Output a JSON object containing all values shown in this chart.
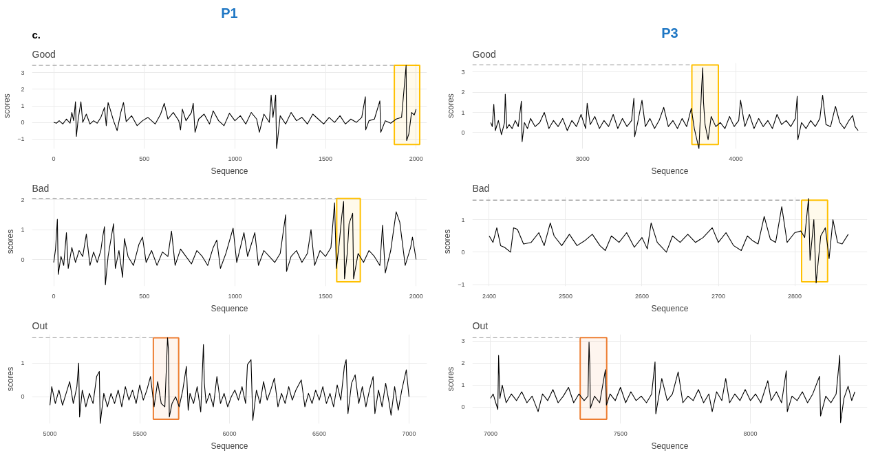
{
  "chart_data": [
    {
      "type": "line",
      "title": "Good",
      "annotations": [
        "c.",
        "P1"
      ],
      "xlabel": "Sequence",
      "ylabel": "scores",
      "grid": true,
      "xlim": [
        -120,
        2060
      ],
      "xticks": [
        0,
        500,
        1000,
        1500,
        2000
      ],
      "ylim": [
        -1.6,
        3.6
      ],
      "yticks": [
        -1,
        0,
        1,
        2,
        3
      ],
      "series": [
        {
          "color": "#000000",
          "x": [
            0,
            15,
            30,
            50,
            70,
            90,
            100,
            110,
            120,
            125,
            135,
            150,
            160,
            180,
            200,
            220,
            240,
            260,
            280,
            290,
            300,
            310,
            330,
            350,
            370,
            385,
            400,
            430,
            460,
            490,
            520,
            560,
            590,
            610,
            630,
            660,
            690,
            700,
            710,
            730,
            760,
            770,
            780,
            800,
            830,
            860,
            880,
            910,
            940,
            970,
            1000,
            1030,
            1060,
            1090,
            1120,
            1135,
            1160,
            1190,
            1200,
            1210,
            1225,
            1230,
            1250,
            1280,
            1310,
            1340,
            1370,
            1400,
            1430,
            1460,
            1490,
            1520,
            1550,
            1580,
            1610,
            1640,
            1670,
            1700,
            1720,
            1722,
            1740,
            1770,
            1800,
            1805,
            1830,
            1860,
            1890,
            1920,
            1945,
            1948,
            1960,
            1975,
            1990,
            2000
          ],
          "values": [
            0,
            -0.05,
            0.1,
            -0.1,
            0.2,
            -0.05,
            0.6,
            0.1,
            1.25,
            -0.85,
            0.2,
            1.25,
            0,
            0.5,
            -0.1,
            0.1,
            -0.05,
            0.3,
            0.9,
            -0.2,
            1.2,
            0.85,
            0.1,
            -0.5,
            0.6,
            1.2,
            0.05,
            0.4,
            -0.2,
            0.1,
            0.3,
            -0.1,
            0.5,
            1.15,
            0.2,
            0.6,
            0.1,
            -0.45,
            0.8,
            0.1,
            0.6,
            1.15,
            -0.6,
            0.2,
            0.5,
            -0.1,
            0.7,
            0.1,
            -0.2,
            0.55,
            0.1,
            0.4,
            -0.1,
            0.6,
            0.2,
            -0.6,
            0.5,
            0,
            1.65,
            0.3,
            1.65,
            -1.6,
            0.4,
            -0.1,
            0.6,
            0.1,
            0.3,
            -0.1,
            0.5,
            0.2,
            -0.1,
            0.3,
            0,
            0.4,
            -0.1,
            0.2,
            0,
            0.3,
            1.55,
            -0.45,
            0.1,
            0.2,
            1.3,
            -0.6,
            0.1,
            -0.05,
            0.2,
            0.3,
            3.45,
            -1.1,
            -0.7,
            0.6,
            0.45,
            0.8
          ]
        }
      ],
      "ref_lines": [
        {
          "axis": "y",
          "value": 3.45,
          "color": "#a6a6a6",
          "line_style": "dashed"
        }
      ],
      "bands": [
        {
          "axis": "x",
          "from": 1880,
          "to": 2020,
          "color": "#ffc000"
        }
      ]
    },
    {
      "type": "line",
      "title": "Good",
      "annotations": [
        "P3"
      ],
      "xlabel": "Sequence",
      "ylabel": "scores",
      "grid": true,
      "xlim": [
        2280,
        4860
      ],
      "xticks": [
        3000,
        4000
      ],
      "ylim": [
        -0.8,
        3.45
      ],
      "yticks": [
        0,
        1,
        2,
        3
      ],
      "series": [
        {
          "color": "#000000",
          "x": [
            2400,
            2410,
            2420,
            2430,
            2450,
            2470,
            2490,
            2495,
            2505,
            2520,
            2540,
            2560,
            2580,
            2600,
            2605,
            2620,
            2640,
            2660,
            2690,
            2720,
            2750,
            2780,
            2810,
            2840,
            2870,
            2900,
            2930,
            2960,
            2990,
            3020,
            3030,
            3050,
            3080,
            3110,
            3140,
            3170,
            3200,
            3230,
            3260,
            3290,
            3320,
            3335,
            3340,
            3360,
            3388,
            3410,
            3440,
            3470,
            3500,
            3530,
            3560,
            3590,
            3620,
            3650,
            3680,
            3710,
            3730,
            3760,
            3778,
            3785,
            3790,
            3800,
            3820,
            3840,
            3870,
            3900,
            3930,
            3960,
            3990,
            4020,
            4032,
            4060,
            4090,
            4120,
            4150,
            4180,
            4210,
            4240,
            4270,
            4300,
            4330,
            4360,
            4390,
            4402,
            4406,
            4430,
            4460,
            4490,
            4520,
            4550,
            4568,
            4590,
            4620,
            4652,
            4680,
            4710,
            4740,
            4764,
            4780,
            4800
          ],
          "values": [
            0.5,
            0.3,
            1.4,
            0.1,
            0.6,
            -0.1,
            0.5,
            1.9,
            0.2,
            0.4,
            0.2,
            0.6,
            0.3,
            1.55,
            -0.45,
            0.5,
            0.2,
            0.7,
            0.3,
            0.5,
            1.0,
            0.2,
            0.6,
            0.3,
            0.7,
            0.1,
            0.6,
            0.3,
            0.9,
            0.2,
            1.45,
            0.4,
            0.8,
            0.2,
            0.6,
            0.3,
            0.9,
            0.2,
            0.7,
            0.3,
            0.6,
            1.7,
            -0.2,
            0.5,
            1.6,
            0.3,
            0.7,
            0.2,
            0.6,
            1.25,
            0.3,
            0.6,
            0.2,
            0.7,
            0.3,
            1.2,
            0.2,
            -0.8,
            2.3,
            3.2,
            1.5,
            0.4,
            -0.35,
            0.8,
            0.3,
            0.5,
            0.2,
            0.8,
            0.3,
            0.6,
            1.6,
            0.3,
            0.9,
            0.2,
            0.7,
            0.3,
            0.6,
            0.2,
            0.9,
            0.4,
            0.6,
            0.3,
            0.7,
            1.8,
            -0.35,
            0.5,
            0.2,
            0.6,
            0.3,
            0.7,
            1.85,
            0.4,
            0.3,
            1.3,
            0.5,
            0.2,
            0.6,
            0.85,
            0.3,
            0.1
          ]
        }
      ],
      "ref_lines": [
        {
          "axis": "y",
          "value": 3.35,
          "color": "#a6a6a6",
          "line_style": "dashed"
        }
      ],
      "bands": [
        {
          "axis": "x",
          "from": 3714,
          "to": 3887,
          "color": "#ffc000"
        }
      ]
    },
    {
      "type": "line",
      "title": "Bad",
      "xlabel": "Sequence",
      "ylabel": "scores",
      "grid": true,
      "xlim": [
        -120,
        2060
      ],
      "xticks": [
        0,
        500,
        1000,
        1500,
        2000
      ],
      "ylim": [
        -0.9,
        2.1
      ],
      "yticks": [
        0,
        1,
        2
      ],
      "series": [
        {
          "color": "#000000",
          "x": [
            0,
            10,
            20,
            25,
            40,
            55,
            70,
            80,
            100,
            120,
            140,
            160,
            180,
            200,
            220,
            240,
            260,
            270,
            280,
            285,
            300,
            330,
            340,
            360,
            380,
            390,
            410,
            440,
            470,
            490,
            510,
            540,
            570,
            600,
            630,
            650,
            670,
            700,
            730,
            760,
            790,
            820,
            850,
            880,
            900,
            920,
            950,
            990,
            1010,
            1050,
            1070,
            1110,
            1130,
            1160,
            1190,
            1220,
            1250,
            1280,
            1285,
            1310,
            1340,
            1370,
            1400,
            1420,
            1440,
            1470,
            1500,
            1530,
            1550,
            1560,
            1575,
            1590,
            1600,
            1605,
            1620,
            1630,
            1650,
            1655,
            1680,
            1710,
            1740,
            1770,
            1800,
            1815,
            1830,
            1860,
            1890,
            1910,
            1940,
            1970,
            1980,
            2000
          ],
          "values": [
            -0.1,
            0.35,
            1.35,
            -0.5,
            0.1,
            -0.2,
            0.9,
            -0.3,
            0.4,
            -0.1,
            0.3,
            0.1,
            0.85,
            -0.2,
            0.25,
            -0.1,
            0.3,
            0.75,
            1.1,
            -0.85,
            0.1,
            1.2,
            -0.3,
            0.3,
            -0.6,
            0.7,
            0.1,
            -0.2,
            0.5,
            0.75,
            -0.1,
            0.3,
            -0.2,
            0.25,
            0.1,
            0.95,
            -0.2,
            0.35,
            0.1,
            -0.15,
            0.3,
            0.1,
            -0.2,
            0.4,
            0.65,
            -0.3,
            0.2,
            1.05,
            -0.1,
            0.9,
            0.1,
            0.9,
            -0.2,
            0.3,
            0.1,
            -0.1,
            0.2,
            1.5,
            -0.4,
            0.1,
            0.3,
            -0.1,
            0.2,
            1.0,
            -0.2,
            0.3,
            0.1,
            0.4,
            1.9,
            -0.3,
            0.5,
            1.45,
            1.95,
            -0.65,
            0.2,
            1.2,
            1.55,
            -0.65,
            0.2,
            -0.1,
            0.3,
            0.1,
            -0.2,
            1.15,
            -0.45,
            0.3,
            1.6,
            1.25,
            -0.2,
            0.4,
            0.75,
            0
          ]
        }
      ],
      "ref_lines": [
        {
          "axis": "y",
          "value": 2.05,
          "color": "#a6a6a6",
          "line_style": "dashed"
        }
      ],
      "bands": [
        {
          "axis": "x",
          "from": 1562,
          "to": 1692,
          "color": "#ffc000"
        }
      ]
    },
    {
      "type": "line",
      "title": "Bad",
      "xlabel": "Sequence",
      "ylabel": "scores",
      "grid": true,
      "xlim": [
        2378,
        2895
      ],
      "xticks": [
        2400,
        2500,
        2600,
        2700,
        2800
      ],
      "ylim": [
        -1.05,
        1.7
      ],
      "yticks": [
        -1,
        0,
        1
      ],
      "series": [
        {
          "color": "#000000",
          "x": [
            2400,
            2405,
            2410,
            2415,
            2420,
            2428,
            2432,
            2437,
            2445,
            2455,
            2465,
            2472,
            2480,
            2485,
            2495,
            2505,
            2515,
            2525,
            2535,
            2545,
            2552,
            2560,
            2570,
            2580,
            2590,
            2600,
            2607,
            2612,
            2620,
            2632,
            2640,
            2650,
            2660,
            2670,
            2680,
            2692,
            2700,
            2710,
            2720,
            2730,
            2738,
            2745,
            2752,
            2760,
            2768,
            2775,
            2783,
            2790,
            2800,
            2808,
            2813,
            2818,
            2820,
            2825,
            2828,
            2834,
            2840,
            2845,
            2850,
            2856,
            2862,
            2870
          ],
          "values": [
            0.5,
            0.3,
            0.75,
            0.2,
            0.15,
            0.0,
            0.75,
            0.7,
            0.25,
            0.3,
            0.6,
            0.2,
            0.9,
            0.5,
            0.2,
            0.55,
            0.2,
            0.35,
            0.55,
            0.2,
            0.05,
            0.5,
            0.3,
            0.6,
            0.15,
            0.45,
            0.1,
            0.9,
            0.3,
            0.0,
            0.5,
            0.3,
            0.55,
            0.3,
            0.45,
            0.75,
            0.3,
            0.6,
            0.2,
            0.05,
            0.5,
            0.35,
            0.25,
            1.1,
            0.4,
            0.3,
            1.4,
            0.3,
            0.6,
            0.65,
            0.45,
            1.65,
            -0.25,
            1.0,
            -0.95,
            0.5,
            0.75,
            -0.2,
            1.0,
            0.3,
            0.25,
            0.55
          ]
        }
      ],
      "ref_lines": [
        {
          "axis": "y",
          "value": 1.6,
          "color": "#a6a6a6",
          "line_style": "dashed"
        }
      ],
      "bands": [
        {
          "axis": "x",
          "from": 2809,
          "to": 2843,
          "color": "#ffc000"
        }
      ]
    },
    {
      "type": "line",
      "title": "Out",
      "xlabel": "Sequence",
      "ylabel": "scores",
      "grid": true,
      "xlim": [
        4900,
        7100
      ],
      "xticks": [
        5000,
        5500,
        6000,
        6500,
        7000
      ],
      "ylim": [
        -0.8,
        1.85
      ],
      "yticks": [
        0,
        1
      ],
      "series": [
        {
          "color": "#000000",
          "x": [
            5000,
            5010,
            5030,
            5050,
            5070,
            5090,
            5110,
            5130,
            5150,
            5160,
            5165,
            5180,
            5200,
            5220,
            5240,
            5260,
            5275,
            5280,
            5300,
            5320,
            5340,
            5360,
            5380,
            5400,
            5420,
            5440,
            5460,
            5480,
            5500,
            5520,
            5540,
            5560,
            5580,
            5600,
            5620,
            5640,
            5655,
            5660,
            5665,
            5680,
            5700,
            5720,
            5740,
            5760,
            5770,
            5780,
            5800,
            5820,
            5840,
            5855,
            5860,
            5870,
            5890,
            5910,
            5930,
            5950,
            5970,
            5990,
            6010,
            6030,
            6050,
            6070,
            6090,
            6100,
            6120,
            6130,
            6150,
            6170,
            6190,
            6210,
            6230,
            6250,
            6270,
            6290,
            6310,
            6330,
            6350,
            6370,
            6400,
            6420,
            6440,
            6460,
            6480,
            6500,
            6520,
            6540,
            6560,
            6580,
            6600,
            6620,
            6640,
            6650,
            6660,
            6680,
            6700,
            6720,
            6740,
            6760,
            6780,
            6800,
            6810,
            6830,
            6850,
            6870,
            6890,
            6900,
            6920,
            6940,
            6960,
            6985,
            7000
          ],
          "values": [
            -0.25,
            0.3,
            -0.2,
            0.2,
            -0.25,
            0.1,
            0.45,
            -0.2,
            0.3,
            1.0,
            -0.6,
            0.2,
            -0.3,
            0.1,
            -0.2,
            0.6,
            0.75,
            -0.8,
            0.1,
            -0.3,
            0.1,
            -0.2,
            0.2,
            -0.3,
            0.3,
            -0.1,
            0.2,
            -0.2,
            0.35,
            -0.1,
            0.2,
            0.6,
            -0.3,
            0.45,
            -0.2,
            -0.3,
            1.75,
            1.4,
            -0.6,
            -0.2,
            0,
            -0.3,
            0.2,
            0.9,
            -0.4,
            0.1,
            -0.2,
            0.3,
            -0.45,
            1.55,
            0.4,
            -0.2,
            0.1,
            -0.3,
            0.6,
            -0.2,
            0.1,
            -0.3,
            0,
            0.2,
            -0.1,
            0.3,
            -0.2,
            0.95,
            1.1,
            -0.7,
            0.2,
            -0.2,
            0.45,
            -0.1,
            0.2,
            0.55,
            -0.3,
            0.1,
            -0.2,
            0.3,
            -0.1,
            0.2,
            0.5,
            -0.3,
            0.1,
            -0.2,
            0.2,
            -0.1,
            0.3,
            -0.2,
            0.1,
            -0.3,
            0.35,
            -0.1,
            0.9,
            1.1,
            -0.5,
            0.4,
            0.65,
            -0.2,
            0.3,
            -0.3,
            0.2,
            0.6,
            -0.5,
            0.2,
            -0.3,
            0.4,
            -0.2,
            -0.55,
            0.3,
            -0.4,
            0.2,
            0.8,
            0
          ]
        }
      ],
      "ref_lines": [
        {
          "axis": "y",
          "value": 1.75,
          "color": "#a6a6a6",
          "line_style": "dashed"
        }
      ],
      "bands": [
        {
          "axis": "x",
          "from": 5576,
          "to": 5717,
          "color": "#ed7d31"
        }
      ]
    },
    {
      "type": "line",
      "title": "Out",
      "xlabel": "Sequence",
      "ylabel": "scores",
      "grid": true,
      "xlim": [
        6930,
        8450
      ],
      "xticks": [
        7000,
        7500,
        8000
      ],
      "ylim": [
        -0.75,
        3.3
      ],
      "yticks": [
        0,
        1,
        2,
        3
      ],
      "series": [
        {
          "color": "#000000",
          "x": [
            7000,
            7010,
            7020,
            7028,
            7031,
            7036,
            7045,
            7060,
            7080,
            7100,
            7120,
            7140,
            7160,
            7183,
            7200,
            7220,
            7240,
            7260,
            7280,
            7300,
            7320,
            7340,
            7360,
            7375,
            7379,
            7382,
            7384,
            7400,
            7420,
            7442,
            7446,
            7460,
            7480,
            7500,
            7520,
            7540,
            7560,
            7580,
            7600,
            7620,
            7633,
            7636,
            7659,
            7680,
            7700,
            7722,
            7740,
            7760,
            7780,
            7800,
            7820,
            7840,
            7853,
            7870,
            7890,
            7905,
            7920,
            7940,
            7960,
            7980,
            8000,
            8020,
            8040,
            8067,
            8080,
            8100,
            8120,
            8138,
            8142,
            8160,
            8180,
            8200,
            8220,
            8240,
            8266,
            8270,
            8290,
            8310,
            8330,
            8344,
            8347,
            8360,
            8376,
            8390,
            8402
          ],
          "values": [
            0.4,
            0.6,
            0.2,
            -0.1,
            2.35,
            0.4,
            1.0,
            0.2,
            0.6,
            0.3,
            0.7,
            0.2,
            0.5,
            -0.2,
            0.6,
            0.3,
            0.8,
            0.2,
            0.5,
            0.9,
            0.2,
            0.6,
            0.3,
            0.5,
            2.95,
            1.9,
            -0.05,
            0.5,
            0.2,
            1.7,
            0.1,
            0.6,
            0.3,
            0.9,
            0.2,
            0.7,
            0.3,
            0.5,
            0.2,
            0.6,
            2.05,
            -0.3,
            1.3,
            0.3,
            0.6,
            1.6,
            0.2,
            0.5,
            0.3,
            0.8,
            0.2,
            0.6,
            -0.2,
            0.7,
            0.3,
            1.3,
            0.2,
            0.6,
            0.3,
            0.8,
            0.3,
            0.6,
            0.2,
            1.2,
            0.3,
            0.7,
            0.2,
            1.65,
            -0.2,
            0.5,
            0.3,
            0.7,
            0.2,
            0.6,
            1.4,
            -0.4,
            0.5,
            0.2,
            0.6,
            2.35,
            -0.7,
            0.4,
            0.95,
            0.3,
            0.7
          ]
        }
      ],
      "ref_lines": [
        {
          "axis": "y",
          "value": 3.15,
          "color": "#a6a6a6",
          "line_style": "dashed"
        }
      ],
      "bands": [
        {
          "axis": "x",
          "from": 7345,
          "to": 7447,
          "color": "#ed7d31"
        }
      ]
    }
  ]
}
